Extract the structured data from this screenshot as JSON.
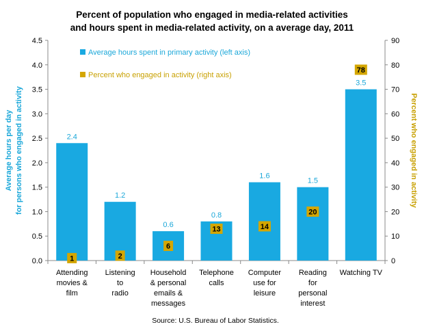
{
  "chart_data": {
    "type": "bar",
    "title": [
      "Percent of population who engaged in media-related activities",
      "and hours spent in media-related activity, on a average day, 2011"
    ],
    "categories": [
      [
        "Attending",
        "movies &",
        "film"
      ],
      [
        "Listening",
        "to",
        "radio"
      ],
      [
        "Household",
        "& personal",
        "emails &",
        "messages"
      ],
      [
        "Telephone",
        "calls"
      ],
      [
        "Computer",
        "use for",
        "leisure"
      ],
      [
        "Reading",
        "for",
        "personal",
        "interest"
      ],
      [
        "Watching TV"
      ]
    ],
    "series": [
      {
        "name": "Average hours spent in primary activity (left axis)",
        "axis": "left",
        "color": "#19A9E1",
        "values": [
          2.4,
          1.2,
          0.6,
          0.8,
          1.6,
          1.5,
          3.5
        ],
        "labels": [
          "2.4",
          "1.2",
          "0.6",
          "0.8",
          "1.6",
          "1.5",
          "3.5"
        ]
      },
      {
        "name": "Percent who engaged in activity (right axis)",
        "axis": "right",
        "color": "#D4A600",
        "values": [
          1,
          2,
          6,
          13,
          14,
          20,
          78
        ],
        "labels": [
          "1",
          "2",
          "6",
          "13",
          "14",
          "20",
          "78"
        ]
      }
    ],
    "left_axis": {
      "label": [
        "Average hours  per day",
        "for persons who engaged  in activity"
      ],
      "ylim": [
        0,
        4.5
      ],
      "ticks": [
        "0.0",
        "0.5",
        "1.0",
        "1.5",
        "2.0",
        "2.5",
        "3.0",
        "3.5",
        "4.0",
        "4.5"
      ]
    },
    "right_axis": {
      "label": "Percent who engaged in activity",
      "ylim": [
        0,
        90
      ],
      "ticks": [
        "0",
        "10",
        "20",
        "30",
        "40",
        "50",
        "60",
        "70",
        "80",
        "90"
      ]
    },
    "legend_placement": "top-left",
    "grid": false,
    "source": "Source: U.S. Bureau of Labor Statistics."
  }
}
